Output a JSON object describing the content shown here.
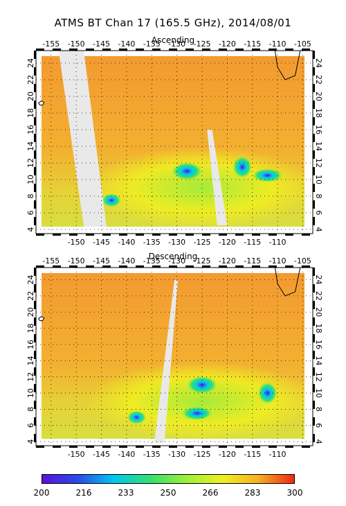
{
  "figure": {
    "title": "ATMS BT Chan 17 (165.5 GHz), 2014/08/01"
  },
  "colors": {
    "background_field": "#f2a23a",
    "swath_gap": "#e9e9e9",
    "land": "#ffffff",
    "colorbar": [
      "#5a12d8",
      "#2a4be8",
      "#00c8f0",
      "#33e070",
      "#9af03a",
      "#f0f020",
      "#f8b020",
      "#f02818"
    ]
  },
  "chart_data": [
    {
      "type": "heatmap",
      "panel": "Ascending",
      "title": "Ascending",
      "x_ticks_bottom": [
        "-150",
        "-145",
        "-140",
        "-135",
        "-130",
        "-125",
        "-120",
        "-115",
        "-110"
      ],
      "x_ticks_top": [
        "-155",
        "-150",
        "-145",
        "-140",
        "-135",
        "-130",
        "-125",
        "-120",
        "-115",
        "-110",
        "-105"
      ],
      "y_ticks": [
        "4",
        "6",
        "8",
        "10",
        "12",
        "14",
        "16",
        "18",
        "20",
        "22",
        "24"
      ],
      "y_ticks_right": [
        "4",
        "6",
        "8",
        "10",
        "12",
        "14",
        "16",
        "18",
        "20",
        "22",
        "24"
      ],
      "xlim": [
        -158,
        -103
      ],
      "ylim": [
        3.5,
        25.5
      ],
      "grid": true,
      "low_bt_regions": [
        {
          "lon": -143,
          "lat": 7.5,
          "min_bt": 205
        },
        {
          "lon": -128,
          "lat": 11.0,
          "min_bt": 225
        },
        {
          "lon": -117,
          "lat": 11.5,
          "min_bt": 210
        },
        {
          "lon": -112,
          "lat": 10.5,
          "min_bt": 205
        }
      ]
    },
    {
      "type": "heatmap",
      "panel": "Descending",
      "title": "Descending",
      "x_ticks_bottom": [
        "-150",
        "-145",
        "-140",
        "-135",
        "-130",
        "-125",
        "-120",
        "-115",
        "-110"
      ],
      "x_ticks_top": [
        "-155",
        "-150",
        "-145",
        "-140",
        "-135",
        "-130",
        "-125",
        "-120",
        "-115",
        "-110",
        "-105"
      ],
      "y_ticks": [
        "4",
        "6",
        "8",
        "10",
        "12",
        "14",
        "16",
        "18",
        "20",
        "22",
        "24"
      ],
      "y_ticks_right": [
        "4",
        "6",
        "8",
        "10",
        "12",
        "14",
        "16",
        "18",
        "20",
        "22",
        "24"
      ],
      "xlim": [
        -158,
        -103
      ],
      "ylim": [
        3.5,
        25.5
      ],
      "grid": true,
      "low_bt_regions": [
        {
          "lon": -138,
          "lat": 7.0,
          "min_bt": 215
        },
        {
          "lon": -125,
          "lat": 11.0,
          "min_bt": 205
        },
        {
          "lon": -112,
          "lat": 10.0,
          "min_bt": 205
        },
        {
          "lon": -126,
          "lat": 7.5,
          "min_bt": 215
        }
      ]
    },
    {
      "type": "colorbar",
      "tick_labels": [
        "200",
        "216",
        "233",
        "250",
        "266",
        "283",
        "300"
      ],
      "range": [
        200,
        300
      ]
    }
  ]
}
